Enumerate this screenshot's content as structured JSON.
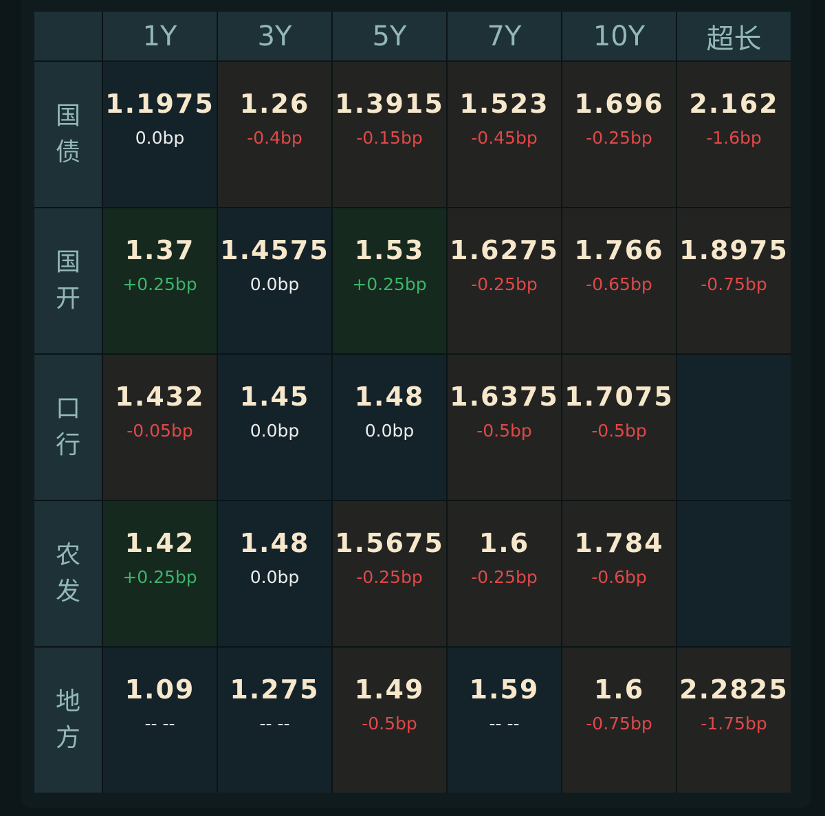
{
  "table": {
    "columns": [
      "1Y",
      "3Y",
      "5Y",
      "7Y",
      "10Y",
      "超长"
    ],
    "rows": [
      {
        "label": "国债",
        "cells": [
          {
            "value": "1.1975",
            "change": "0.0bp"
          },
          {
            "value": "1.26",
            "change": "-0.4bp"
          },
          {
            "value": "1.3915",
            "change": "-0.15bp"
          },
          {
            "value": "1.523",
            "change": "-0.45bp"
          },
          {
            "value": "1.696",
            "change": "-0.25bp"
          },
          {
            "value": "2.162",
            "change": "-1.6bp"
          }
        ]
      },
      {
        "label": "国开",
        "cells": [
          {
            "value": "1.37",
            "change": "+0.25bp"
          },
          {
            "value": "1.4575",
            "change": "0.0bp"
          },
          {
            "value": "1.53",
            "change": "+0.25bp"
          },
          {
            "value": "1.6275",
            "change": "-0.25bp"
          },
          {
            "value": "1.766",
            "change": "-0.65bp"
          },
          {
            "value": "1.8975",
            "change": "-0.75bp"
          }
        ]
      },
      {
        "label": "口行",
        "cells": [
          {
            "value": "1.432",
            "change": "-0.05bp"
          },
          {
            "value": "1.45",
            "change": "0.0bp"
          },
          {
            "value": "1.48",
            "change": "0.0bp"
          },
          {
            "value": "1.6375",
            "change": "-0.5bp"
          },
          {
            "value": "1.7075",
            "change": "-0.5bp"
          },
          null
        ]
      },
      {
        "label": "农发",
        "cells": [
          {
            "value": "1.42",
            "change": "+0.25bp"
          },
          {
            "value": "1.48",
            "change": "0.0bp"
          },
          {
            "value": "1.5675",
            "change": "-0.25bp"
          },
          {
            "value": "1.6",
            "change": "-0.25bp"
          },
          {
            "value": "1.784",
            "change": "-0.6bp"
          },
          null
        ]
      },
      {
        "label": "地方",
        "cells": [
          {
            "value": "1.09",
            "change": "-- --"
          },
          {
            "value": "1.275",
            "change": "-- --"
          },
          {
            "value": "1.49",
            "change": "-0.5bp"
          },
          {
            "value": "1.59",
            "change": "-- --"
          },
          {
            "value": "1.6",
            "change": "-0.75bp"
          },
          {
            "value": "2.2825",
            "change": "-1.75bp"
          }
        ]
      }
    ]
  }
}
